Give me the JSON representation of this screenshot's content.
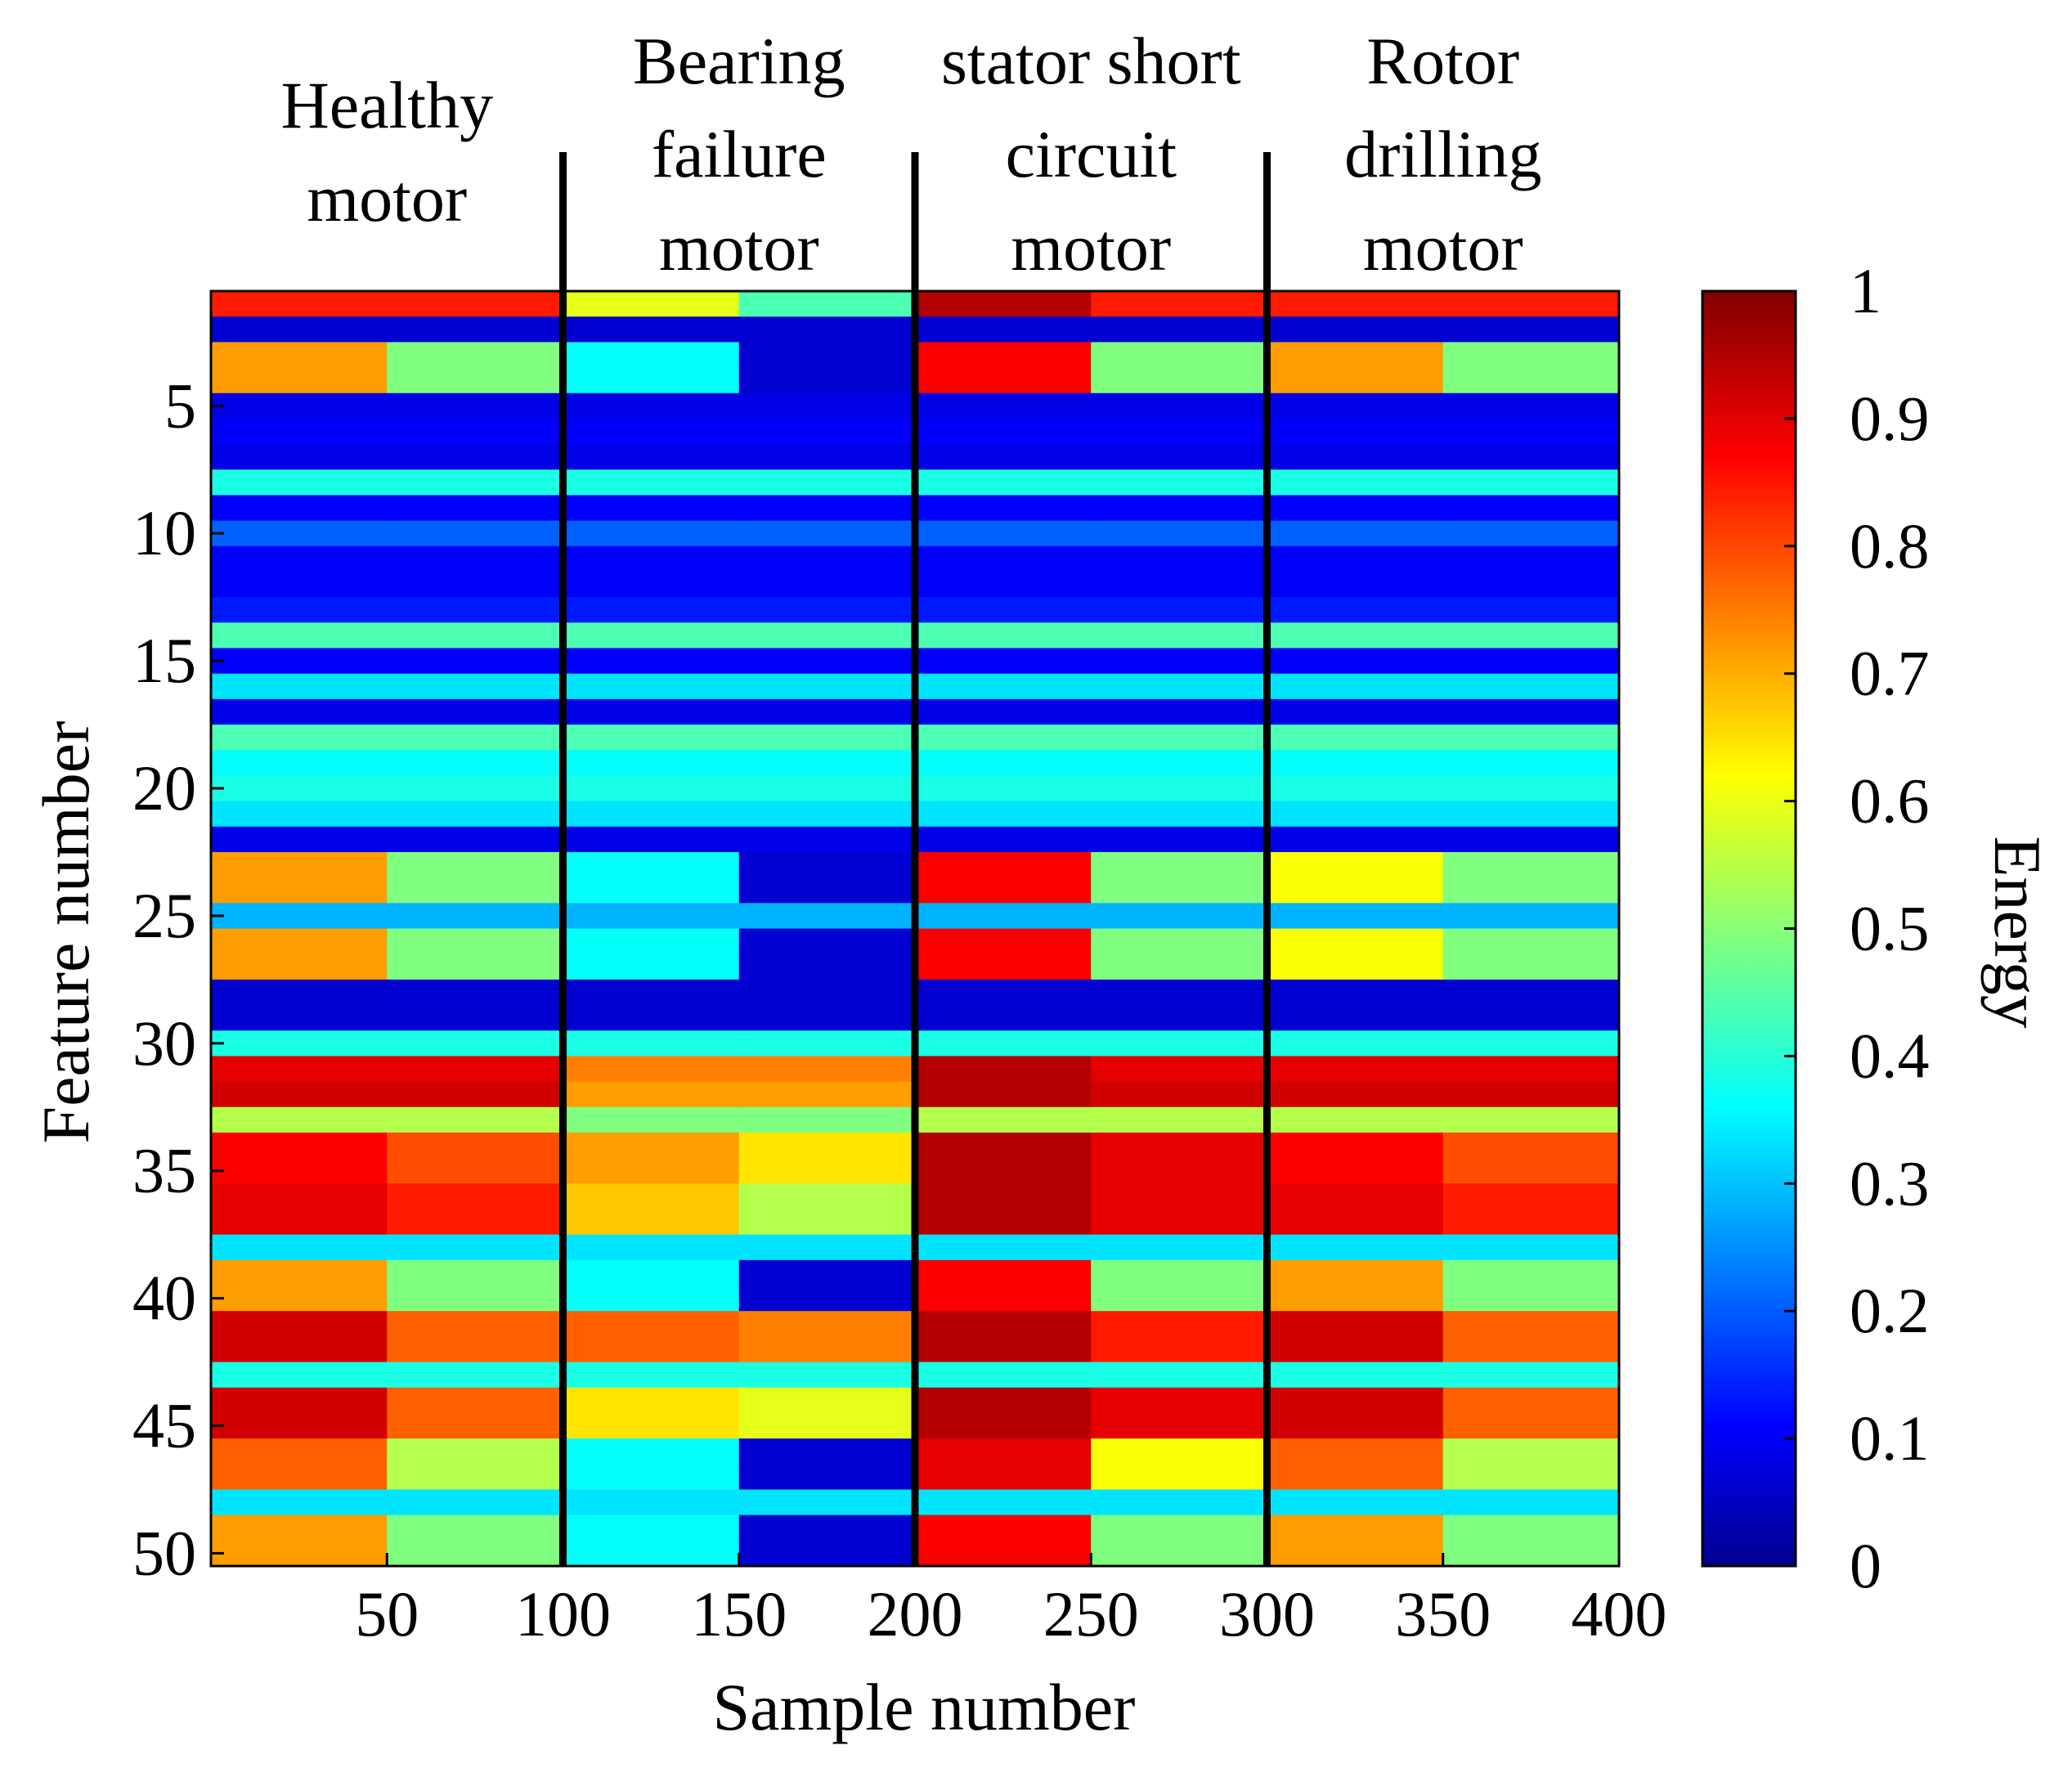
{
  "chart_data": {
    "type": "heatmap",
    "title": "",
    "xlabel": "Sample number",
    "ylabel": "Feature number",
    "colorbar_label": "Energy",
    "xlim": [
      0,
      400
    ],
    "ylim": [
      1,
      50
    ],
    "x_ticks": [
      50,
      100,
      150,
      200,
      250,
      300,
      350,
      400
    ],
    "x_tick_labels": [
      "50",
      "100",
      "150",
      "200",
      "250",
      "300",
      "350",
      "400"
    ],
    "y_ticks": [
      5,
      10,
      15,
      20,
      25,
      30,
      35,
      40,
      45,
      50
    ],
    "y_tick_labels": [
      "5",
      "10",
      "15",
      "20",
      "25",
      "30",
      "35",
      "40",
      "45",
      "50"
    ],
    "colorbar_range": [
      0,
      1
    ],
    "colorbar_ticks": [
      0,
      0.1,
      0.2,
      0.3,
      0.4,
      0.5,
      0.6,
      0.7,
      0.8,
      0.9,
      1
    ],
    "colorbar_tick_labels": [
      "0",
      "0.1",
      "0.2",
      "0.3",
      "0.4",
      "0.5",
      "0.6",
      "0.7",
      "0.8",
      "0.9",
      "1"
    ],
    "colormap": "jet",
    "group_dividers": [
      100,
      200,
      300
    ],
    "groups": [
      {
        "name": "Healthy motor",
        "lines": [
          "Healthy",
          "motor"
        ],
        "range": [
          1,
          100
        ]
      },
      {
        "name": "Bearing failure motor",
        "lines": [
          "Bearing",
          "failure",
          "motor"
        ],
        "range": [
          101,
          200
        ]
      },
      {
        "name": "stator short circuit motor",
        "lines": [
          "stator short",
          "circuit",
          "motor"
        ],
        "range": [
          201,
          300
        ]
      },
      {
        "name": "Rotor drilling motor",
        "lines": [
          "Rotor",
          "drilling",
          "motor"
        ],
        "range": [
          301,
          400
        ]
      }
    ],
    "feature_energy_profile": {
      "features": [
        1,
        2,
        3,
        4,
        5,
        6,
        7,
        8,
        9,
        10,
        11,
        12,
        13,
        14,
        15,
        16,
        17,
        18,
        19,
        20,
        21,
        22,
        23,
        24,
        25,
        26,
        27,
        28,
        29,
        30,
        31,
        32,
        33,
        34,
        35,
        36,
        37,
        38,
        39,
        40,
        41,
        42,
        43,
        44,
        45,
        46,
        47,
        48,
        49,
        50
      ],
      "series": [
        {
          "name": "Healthy motor (first half)",
          "values": [
            0.85,
            0.08,
            0.72,
            0.72,
            0.1,
            0.12,
            0.1,
            0.4,
            0.12,
            0.22,
            0.12,
            0.12,
            0.15,
            0.45,
            0.12,
            0.35,
            0.1,
            0.45,
            0.38,
            0.4,
            0.35,
            0.1,
            0.72,
            0.72,
            0.3,
            0.72,
            0.72,
            0.08,
            0.08,
            0.4,
            0.9,
            0.92,
            0.55,
            0.88,
            0.88,
            0.9,
            0.9,
            0.35,
            0.72,
            0.72,
            0.92,
            0.92,
            0.4,
            0.92,
            0.92,
            0.78,
            0.78,
            0.35,
            0.72,
            0.72
          ]
        },
        {
          "name": "Healthy motor (second half)",
          "values": [
            0.85,
            0.08,
            0.5,
            0.5,
            0.1,
            0.12,
            0.1,
            0.4,
            0.12,
            0.22,
            0.12,
            0.12,
            0.15,
            0.45,
            0.12,
            0.35,
            0.1,
            0.45,
            0.38,
            0.4,
            0.35,
            0.1,
            0.5,
            0.5,
            0.3,
            0.5,
            0.5,
            0.08,
            0.08,
            0.4,
            0.9,
            0.92,
            0.55,
            0.8,
            0.8,
            0.85,
            0.85,
            0.35,
            0.5,
            0.5,
            0.78,
            0.78,
            0.4,
            0.78,
            0.78,
            0.55,
            0.55,
            0.35,
            0.5,
            0.5
          ]
        },
        {
          "name": "Bearing failure motor (first half)",
          "values": [
            0.6,
            0.08,
            0.38,
            0.38,
            0.1,
            0.12,
            0.1,
            0.4,
            0.12,
            0.22,
            0.12,
            0.12,
            0.15,
            0.45,
            0.12,
            0.35,
            0.1,
            0.45,
            0.38,
            0.4,
            0.35,
            0.1,
            0.38,
            0.38,
            0.3,
            0.38,
            0.38,
            0.08,
            0.08,
            0.4,
            0.75,
            0.72,
            0.5,
            0.72,
            0.72,
            0.68,
            0.68,
            0.35,
            0.38,
            0.38,
            0.78,
            0.78,
            0.4,
            0.65,
            0.65,
            0.38,
            0.38,
            0.35,
            0.38,
            0.38
          ]
        },
        {
          "name": "Bearing failure motor (second half)",
          "values": [
            0.45,
            0.08,
            0.08,
            0.08,
            0.1,
            0.12,
            0.1,
            0.4,
            0.12,
            0.22,
            0.12,
            0.12,
            0.15,
            0.45,
            0.12,
            0.35,
            0.1,
            0.45,
            0.38,
            0.4,
            0.35,
            0.1,
            0.08,
            0.08,
            0.3,
            0.08,
            0.08,
            0.08,
            0.08,
            0.4,
            0.75,
            0.72,
            0.5,
            0.65,
            0.65,
            0.55,
            0.55,
            0.35,
            0.08,
            0.08,
            0.75,
            0.75,
            0.4,
            0.6,
            0.6,
            0.08,
            0.08,
            0.35,
            0.08,
            0.08
          ]
        },
        {
          "name": "stator short circuit motor (first half)",
          "values": [
            0.95,
            0.08,
            0.88,
            0.88,
            0.1,
            0.12,
            0.1,
            0.4,
            0.12,
            0.22,
            0.12,
            0.12,
            0.15,
            0.45,
            0.12,
            0.35,
            0.1,
            0.45,
            0.38,
            0.4,
            0.35,
            0.1,
            0.88,
            0.88,
            0.3,
            0.88,
            0.88,
            0.08,
            0.08,
            0.4,
            0.95,
            0.95,
            0.55,
            0.95,
            0.95,
            0.95,
            0.95,
            0.35,
            0.88,
            0.88,
            0.95,
            0.95,
            0.4,
            0.95,
            0.95,
            0.9,
            0.9,
            0.35,
            0.88,
            0.88
          ]
        },
        {
          "name": "stator short circuit motor (second half)",
          "values": [
            0.85,
            0.08,
            0.5,
            0.5,
            0.1,
            0.12,
            0.1,
            0.4,
            0.12,
            0.22,
            0.12,
            0.12,
            0.15,
            0.45,
            0.12,
            0.35,
            0.1,
            0.45,
            0.38,
            0.4,
            0.35,
            0.1,
            0.5,
            0.5,
            0.3,
            0.5,
            0.5,
            0.08,
            0.08,
            0.4,
            0.9,
            0.92,
            0.55,
            0.9,
            0.9,
            0.9,
            0.9,
            0.35,
            0.5,
            0.5,
            0.85,
            0.85,
            0.4,
            0.9,
            0.9,
            0.62,
            0.62,
            0.35,
            0.5,
            0.5
          ]
        },
        {
          "name": "Rotor drilling motor (first half)",
          "values": [
            0.85,
            0.08,
            0.72,
            0.72,
            0.1,
            0.12,
            0.1,
            0.4,
            0.12,
            0.22,
            0.12,
            0.12,
            0.15,
            0.45,
            0.12,
            0.35,
            0.1,
            0.45,
            0.38,
            0.4,
            0.35,
            0.1,
            0.62,
            0.62,
            0.3,
            0.62,
            0.62,
            0.08,
            0.08,
            0.4,
            0.9,
            0.92,
            0.55,
            0.88,
            0.88,
            0.9,
            0.9,
            0.35,
            0.72,
            0.72,
            0.92,
            0.92,
            0.4,
            0.92,
            0.92,
            0.78,
            0.78,
            0.35,
            0.72,
            0.72
          ]
        },
        {
          "name": "Rotor drilling motor (second half)",
          "values": [
            0.85,
            0.08,
            0.5,
            0.5,
            0.1,
            0.12,
            0.1,
            0.4,
            0.12,
            0.22,
            0.12,
            0.12,
            0.15,
            0.45,
            0.12,
            0.35,
            0.1,
            0.45,
            0.38,
            0.4,
            0.35,
            0.1,
            0.5,
            0.5,
            0.3,
            0.5,
            0.5,
            0.08,
            0.08,
            0.4,
            0.9,
            0.92,
            0.55,
            0.8,
            0.8,
            0.85,
            0.85,
            0.35,
            0.5,
            0.5,
            0.78,
            0.78,
            0.4,
            0.78,
            0.78,
            0.55,
            0.55,
            0.35,
            0.5,
            0.5
          ]
        }
      ]
    }
  }
}
